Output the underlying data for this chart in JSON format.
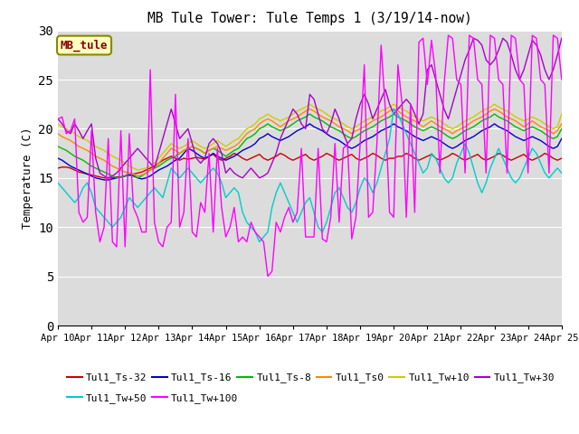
{
  "title": "MB Tule Tower: Tule Temps 1 (3/19/14-now)",
  "ylabel": "Temperature (C)",
  "ylim": [
    0,
    30
  ],
  "background_color": "#dcdcdc",
  "figure_background": "#ffffff",
  "x_tick_labels": [
    "Apr 10",
    "Apr 11",
    "Apr 12",
    "Apr 13",
    "Apr 14",
    "Apr 15",
    "Apr 16",
    "Apr 17",
    "Apr 18",
    "Apr 19",
    "Apr 20",
    "Apr 21",
    "Apr 22",
    "Apr 23",
    "Apr 24",
    "Apr 25"
  ],
  "yticks": [
    0,
    5,
    10,
    15,
    20,
    25,
    30
  ],
  "series_order": [
    "Tul1_Ts-32",
    "Tul1_Ts-16",
    "Tul1_Ts-8",
    "Tul1_Ts0",
    "Tul1_Tw+10",
    "Tul1_Tw+30",
    "Tul1_Tw+50",
    "Tul1_Tw+100"
  ],
  "series": {
    "Tul1_Ts-32": {
      "color": "#cc0000",
      "linewidth": 1.0,
      "values": [
        16.0,
        16.1,
        16.1,
        16.0,
        15.8,
        15.6,
        15.5,
        15.4,
        15.3,
        15.2,
        15.1,
        15.0,
        15.0,
        15.0,
        15.1,
        15.1,
        15.2,
        15.3,
        15.4,
        15.5,
        15.6,
        15.8,
        16.0,
        16.2,
        16.5,
        16.8,
        17.0,
        17.2,
        17.0,
        16.8,
        17.0,
        16.9,
        17.0,
        17.1,
        17.0,
        16.9,
        17.2,
        17.4,
        17.0,
        16.8,
        17.0,
        17.2,
        17.5,
        17.3,
        17.0,
        16.8,
        17.0,
        17.2,
        17.4,
        17.0,
        16.8,
        17.0,
        17.2,
        17.5,
        17.3,
        17.0,
        16.8,
        17.0,
        17.2,
        17.4,
        17.0,
        16.8,
        17.0,
        17.2,
        17.5,
        17.3,
        17.0,
        16.8,
        17.0,
        17.2,
        17.4,
        17.0,
        16.8,
        17.0,
        17.2,
        17.5,
        17.3,
        17.0,
        16.8,
        17.0,
        17.0,
        17.2,
        17.2,
        17.5,
        17.3,
        17.0,
        16.8,
        17.0,
        17.2,
        17.4,
        17.0,
        16.8,
        17.0,
        17.2,
        17.5,
        17.3,
        17.0,
        16.8,
        17.0,
        17.2,
        17.4,
        17.0,
        16.8,
        17.0,
        17.2,
        17.5,
        17.3,
        17.0,
        16.8,
        17.0,
        17.2,
        17.4,
        17.0,
        16.8,
        17.0,
        17.2,
        17.5,
        17.3,
        17.0,
        16.8,
        17.0
      ]
    },
    "Tul1_Ts-16": {
      "color": "#0000cc",
      "linewidth": 1.0,
      "values": [
        17.0,
        16.8,
        16.5,
        16.2,
        16.0,
        15.8,
        15.6,
        15.4,
        15.2,
        15.0,
        14.9,
        14.8,
        14.8,
        14.9,
        15.0,
        15.1,
        15.2,
        15.3,
        15.2,
        15.0,
        14.9,
        15.0,
        15.2,
        15.5,
        15.8,
        16.0,
        16.2,
        16.5,
        16.8,
        17.0,
        17.5,
        18.0,
        17.8,
        17.5,
        17.2,
        17.0,
        17.2,
        17.5,
        17.2,
        17.0,
        16.8,
        17.0,
        17.2,
        17.5,
        17.8,
        18.0,
        18.2,
        18.5,
        19.0,
        19.2,
        19.5,
        19.2,
        19.0,
        18.8,
        19.0,
        19.2,
        19.5,
        19.8,
        20.0,
        20.2,
        20.5,
        20.2,
        20.0,
        19.8,
        19.5,
        19.2,
        19.0,
        18.8,
        18.5,
        18.2,
        18.0,
        18.2,
        18.5,
        18.8,
        19.0,
        19.2,
        19.5,
        19.8,
        20.0,
        20.2,
        20.5,
        20.2,
        20.0,
        19.8,
        19.5,
        19.2,
        19.0,
        18.8,
        19.0,
        19.2,
        19.0,
        18.8,
        18.5,
        18.2,
        18.0,
        18.2,
        18.5,
        18.8,
        19.0,
        19.2,
        19.5,
        19.8,
        20.0,
        20.2,
        20.5,
        20.2,
        20.0,
        19.8,
        19.5,
        19.2,
        19.0,
        18.8,
        19.0,
        19.2,
        19.0,
        18.8,
        18.5,
        18.2,
        18.0,
        18.2,
        19.0
      ]
    },
    "Tul1_Ts-8": {
      "color": "#00bb00",
      "linewidth": 1.0,
      "values": [
        18.2,
        18.0,
        17.8,
        17.5,
        17.2,
        17.0,
        16.8,
        16.5,
        16.2,
        16.0,
        15.8,
        15.6,
        15.4,
        15.2,
        15.0,
        15.1,
        15.2,
        15.5,
        15.3,
        15.0,
        15.2,
        15.5,
        15.8,
        16.0,
        16.2,
        16.5,
        16.8,
        17.0,
        17.2,
        17.5,
        17.8,
        18.0,
        18.2,
        18.0,
        17.8,
        17.5,
        17.8,
        18.0,
        17.8,
        17.5,
        17.2,
        17.5,
        17.8,
        18.0,
        18.5,
        19.0,
        19.2,
        19.5,
        20.0,
        20.2,
        20.5,
        20.2,
        20.0,
        19.8,
        20.0,
        20.2,
        20.5,
        20.8,
        21.0,
        21.2,
        21.5,
        21.2,
        21.0,
        20.8,
        20.5,
        20.2,
        20.0,
        19.8,
        19.5,
        19.2,
        19.0,
        19.2,
        19.5,
        19.8,
        20.0,
        20.2,
        20.5,
        20.8,
        21.0,
        21.2,
        21.5,
        21.2,
        21.0,
        20.8,
        20.5,
        20.2,
        20.0,
        19.8,
        20.0,
        20.2,
        20.0,
        19.8,
        19.5,
        19.2,
        19.0,
        19.2,
        19.5,
        19.8,
        20.0,
        20.2,
        20.5,
        20.8,
        21.0,
        21.2,
        21.5,
        21.2,
        21.0,
        20.8,
        20.5,
        20.2,
        20.0,
        19.8,
        20.0,
        20.2,
        20.0,
        19.8,
        19.5,
        19.2,
        19.0,
        19.2,
        20.0
      ]
    },
    "Tul1_Ts0": {
      "color": "#ff8800",
      "linewidth": 1.0,
      "values": [
        19.5,
        19.2,
        19.0,
        18.8,
        18.5,
        18.2,
        18.0,
        17.8,
        17.5,
        17.2,
        17.0,
        16.8,
        16.5,
        16.2,
        16.0,
        15.8,
        15.6,
        15.5,
        15.4,
        15.2,
        15.3,
        15.5,
        15.8,
        16.0,
        16.5,
        17.0,
        17.5,
        18.0,
        17.8,
        17.5,
        17.8,
        18.0,
        18.2,
        18.0,
        17.8,
        17.5,
        17.8,
        18.0,
        18.2,
        18.0,
        17.8,
        18.0,
        18.2,
        18.5,
        19.0,
        19.5,
        19.8,
        20.0,
        20.5,
        20.8,
        21.0,
        20.8,
        20.5,
        20.2,
        20.5,
        20.8,
        21.0,
        21.2,
        21.5,
        21.8,
        22.0,
        21.8,
        21.5,
        21.2,
        21.0,
        20.8,
        20.5,
        20.2,
        20.0,
        19.8,
        19.5,
        19.8,
        20.0,
        20.2,
        20.5,
        20.8,
        21.0,
        21.2,
        21.5,
        21.8,
        22.0,
        21.8,
        21.5,
        21.2,
        21.0,
        20.8,
        20.5,
        20.2,
        20.5,
        20.8,
        20.5,
        20.2,
        20.0,
        19.8,
        19.5,
        19.8,
        20.0,
        20.2,
        20.5,
        20.8,
        21.0,
        21.2,
        21.5,
        21.8,
        22.0,
        21.8,
        21.5,
        21.2,
        21.0,
        20.8,
        20.5,
        20.2,
        20.5,
        20.8,
        20.5,
        20.2,
        20.0,
        19.8,
        19.5,
        19.8,
        20.5
      ]
    },
    "Tul1_Tw+10": {
      "color": "#cccc00",
      "linewidth": 1.0,
      "values": [
        20.5,
        20.2,
        20.0,
        19.8,
        19.5,
        19.2,
        19.0,
        18.8,
        18.5,
        18.2,
        18.0,
        17.8,
        17.5,
        17.2,
        17.0,
        16.8,
        16.5,
        16.2,
        16.0,
        15.8,
        15.9,
        16.0,
        16.2,
        16.5,
        17.0,
        17.5,
        18.0,
        18.5,
        18.2,
        18.0,
        18.2,
        18.5,
        18.8,
        18.5,
        18.2,
        18.0,
        18.2,
        18.5,
        18.8,
        18.5,
        18.2,
        18.5,
        18.8,
        19.0,
        19.5,
        20.0,
        20.2,
        20.5,
        21.0,
        21.2,
        21.5,
        21.2,
        21.0,
        20.8,
        21.0,
        21.2,
        21.5,
        21.8,
        22.0,
        22.2,
        22.5,
        22.2,
        22.0,
        21.8,
        21.5,
        21.2,
        21.0,
        20.8,
        20.5,
        20.2,
        20.0,
        20.2,
        20.5,
        20.8,
        21.0,
        21.2,
        21.5,
        21.8,
        22.0,
        22.2,
        22.5,
        22.2,
        22.0,
        21.8,
        21.5,
        21.2,
        21.0,
        20.8,
        21.0,
        21.2,
        21.0,
        20.8,
        20.5,
        20.2,
        20.0,
        20.2,
        20.5,
        20.8,
        21.0,
        21.2,
        21.5,
        21.8,
        22.0,
        22.2,
        22.5,
        22.2,
        22.0,
        21.8,
        21.5,
        21.2,
        21.0,
        20.8,
        21.0,
        21.2,
        21.0,
        20.8,
        20.5,
        20.2,
        20.0,
        20.2,
        21.5
      ]
    },
    "Tul1_Tw+30": {
      "color": "#aa00cc",
      "linewidth": 1.0,
      "values": [
        21.0,
        20.5,
        19.8,
        19.5,
        20.5,
        19.8,
        19.0,
        19.8,
        20.5,
        17.0,
        15.5,
        15.2,
        15.0,
        15.2,
        15.5,
        16.0,
        16.5,
        17.0,
        17.5,
        18.0,
        17.5,
        17.0,
        16.5,
        16.0,
        17.5,
        19.0,
        20.5,
        22.0,
        20.5,
        19.0,
        19.5,
        20.0,
        18.5,
        17.0,
        16.5,
        17.0,
        18.5,
        19.0,
        18.5,
        17.5,
        15.5,
        16.0,
        15.5,
        15.2,
        15.0,
        15.5,
        16.0,
        15.5,
        15.0,
        15.2,
        15.5,
        16.5,
        17.5,
        19.0,
        20.0,
        21.0,
        22.0,
        21.5,
        20.5,
        20.0,
        23.5,
        23.0,
        21.5,
        20.0,
        19.5,
        20.5,
        22.0,
        21.0,
        19.5,
        18.5,
        19.0,
        21.0,
        22.5,
        23.5,
        22.5,
        21.0,
        22.0,
        23.0,
        24.0,
        22.5,
        21.5,
        22.0,
        22.5,
        23.0,
        22.5,
        21.5,
        20.5,
        21.5,
        26.0,
        26.5,
        25.0,
        23.5,
        22.0,
        21.0,
        22.5,
        24.0,
        25.5,
        27.0,
        28.0,
        29.2,
        29.0,
        28.5,
        27.0,
        26.5,
        27.0,
        28.0,
        29.2,
        28.8,
        27.5,
        26.0,
        25.0,
        26.0,
        27.5,
        29.0,
        28.5,
        27.5,
        26.0,
        25.0,
        26.0,
        27.5,
        29.2
      ]
    },
    "Tul1_Tw+50": {
      "color": "#00cccc",
      "linewidth": 1.0,
      "values": [
        14.5,
        14.0,
        13.5,
        13.0,
        12.5,
        13.0,
        14.0,
        14.5,
        13.5,
        12.0,
        11.5,
        11.0,
        10.5,
        10.0,
        10.5,
        11.0,
        12.0,
        13.0,
        12.5,
        12.0,
        12.5,
        13.0,
        13.5,
        14.0,
        13.5,
        13.0,
        14.5,
        16.0,
        15.5,
        15.0,
        15.5,
        16.0,
        15.5,
        15.0,
        14.5,
        15.0,
        15.5,
        16.0,
        15.5,
        14.5,
        13.0,
        13.5,
        14.0,
        13.5,
        11.5,
        10.5,
        10.0,
        9.5,
        8.5,
        9.0,
        9.5,
        12.0,
        13.5,
        14.5,
        13.5,
        12.5,
        11.5,
        10.5,
        11.5,
        12.5,
        13.0,
        11.5,
        10.0,
        9.5,
        10.5,
        12.0,
        13.5,
        14.0,
        13.0,
        12.0,
        11.5,
        12.5,
        14.0,
        15.0,
        14.5,
        13.5,
        14.5,
        16.0,
        17.5,
        19.0,
        22.0,
        21.5,
        20.5,
        19.5,
        18.5,
        17.5,
        16.5,
        15.5,
        16.0,
        17.5,
        17.0,
        16.0,
        15.0,
        14.5,
        15.0,
        16.5,
        17.5,
        18.5,
        17.5,
        16.0,
        14.5,
        13.5,
        14.5,
        16.0,
        17.0,
        18.0,
        17.0,
        16.0,
        15.0,
        14.5,
        15.0,
        16.0,
        17.0,
        18.0,
        17.5,
        16.5,
        15.5,
        15.0,
        15.5,
        16.0,
        15.5
      ]
    },
    "Tul1_Tw+100": {
      "color": "#ff00ff",
      "linewidth": 1.0,
      "values": [
        21.0,
        21.2,
        19.5,
        19.8,
        21.0,
        11.5,
        10.5,
        11.0,
        19.8,
        11.5,
        8.5,
        10.0,
        19.0,
        8.5,
        8.0,
        19.8,
        8.0,
        19.5,
        12.0,
        11.0,
        9.5,
        9.5,
        26.0,
        10.5,
        8.5,
        8.0,
        10.0,
        10.5,
        23.5,
        10.0,
        11.5,
        19.0,
        9.5,
        9.0,
        12.5,
        11.5,
        17.5,
        9.5,
        18.0,
        12.0,
        9.0,
        10.0,
        12.0,
        8.5,
        9.0,
        8.5,
        10.5,
        9.5,
        9.0,
        8.5,
        5.0,
        5.5,
        10.5,
        9.5,
        11.0,
        12.0,
        10.5,
        11.5,
        18.0,
        9.0,
        9.0,
        9.0,
        18.0,
        8.8,
        8.5,
        11.0,
        18.5,
        10.5,
        18.0,
        18.5,
        8.8,
        11.0,
        18.5,
        26.5,
        11.0,
        11.5,
        18.5,
        28.5,
        22.0,
        11.5,
        11.0,
        26.5,
        22.5,
        11.0,
        22.5,
        11.5,
        28.8,
        29.2,
        24.5,
        29.0,
        25.5,
        15.5,
        24.5,
        29.5,
        29.2,
        25.0,
        24.5,
        15.5,
        29.5,
        29.2,
        25.0,
        24.5,
        15.5,
        29.5,
        29.2,
        25.0,
        24.5,
        15.5,
        29.5,
        29.2,
        25.0,
        24.5,
        15.5,
        29.5,
        29.2,
        25.0,
        24.5,
        15.5,
        29.5,
        29.2,
        25.0
      ]
    }
  },
  "annotation_box": {
    "text": "MB_tule",
    "facecolor": "#ffffc0",
    "edgecolor": "#888800",
    "textcolor": "#880000",
    "fontsize": 9,
    "fontweight": "bold"
  },
  "legend_order": [
    "Tul1_Ts-32",
    "Tul1_Ts-16",
    "Tul1_Ts-8",
    "Tul1_Ts0",
    "Tul1_Tw+10",
    "Tul1_Tw+30",
    "Tul1_Tw+50",
    "Tul1_Tw+100"
  ],
  "legend_ncol1": 6,
  "legend_ncol2": 2
}
